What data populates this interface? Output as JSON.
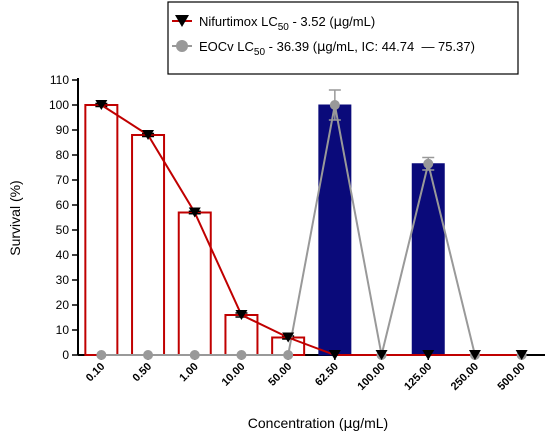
{
  "chart_data": {
    "type": "bar",
    "categories": [
      "0.10",
      "0.50",
      "1.00",
      "10.00",
      "50.00",
      "62.50",
      "100.00",
      "125.00",
      "250.00",
      "500.00"
    ],
    "xlabel_parts": [
      "Concentration (",
      "μ",
      "g/mL)"
    ],
    "ylabel": "Survival (%)",
    "ylim": [
      0,
      110
    ],
    "yticks": [
      0,
      10,
      20,
      30,
      40,
      50,
      60,
      70,
      80,
      90,
      100,
      110
    ],
    "grid": false,
    "legend_position": "top-right",
    "series": [
      {
        "name_parts": [
          "Nifurtimox LC",
          "50",
          " - 3.52 (",
          "μ",
          "g/mL)"
        ],
        "color": "#c00000",
        "bar_style": "outline",
        "marker": "triangle-down",
        "values": [
          100,
          88,
          57,
          16,
          7,
          0,
          0,
          0,
          0,
          0
        ],
        "errors": [
          0.6,
          0.6,
          0.5,
          0.8,
          0.6,
          0,
          0,
          0,
          0,
          0
        ]
      },
      {
        "name_parts": [
          "EOCv LC",
          "50",
          " - 36.39 (",
          "μ",
          "g/mL, IC: 44.74  — 75.37)"
        ],
        "color": "#999999",
        "bar_color": "#0a0a7a",
        "bar_style": "filled",
        "marker": "circle",
        "values": [
          0,
          0,
          0,
          0,
          0,
          100,
          0,
          76.5,
          0,
          0
        ],
        "errors": [
          0,
          0,
          0,
          0,
          0,
          6,
          0,
          2.5,
          0,
          0
        ]
      }
    ]
  }
}
